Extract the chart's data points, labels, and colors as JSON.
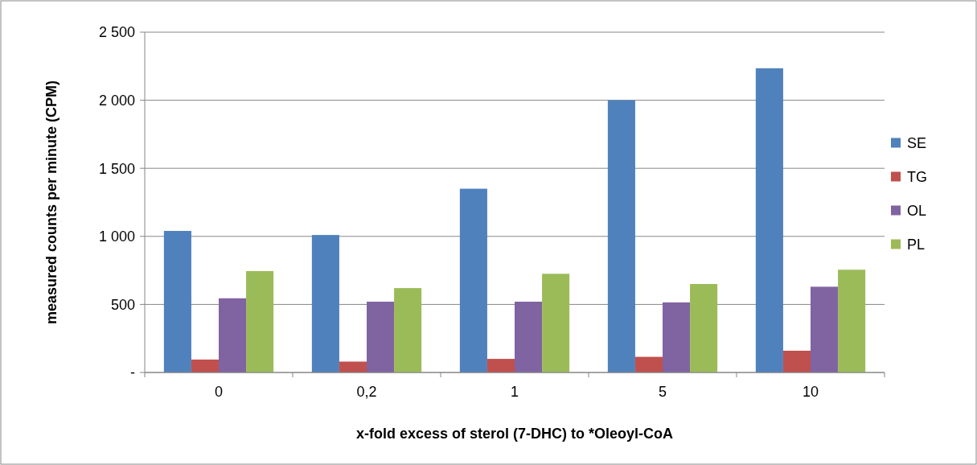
{
  "chart_data": {
    "type": "bar",
    "xlabel": "x-fold excess of sterol (7-DHC) to *Oleoyl-CoA",
    "ylabel": "measured counts per minute (CPM)",
    "categories": [
      "0",
      "0,2",
      "1",
      "5",
      "10"
    ],
    "series": [
      {
        "name": "SE",
        "color": "#4f81bd",
        "values": [
          1040,
          1010,
          1350,
          2000,
          2235
        ]
      },
      {
        "name": "TG",
        "color": "#c0504d",
        "values": [
          95,
          80,
          100,
          115,
          160
        ]
      },
      {
        "name": "OL",
        "color": "#8064a2",
        "values": [
          545,
          520,
          520,
          515,
          630
        ]
      },
      {
        "name": "PL",
        "color": "#9bbb59",
        "values": [
          745,
          620,
          725,
          650,
          755
        ]
      }
    ],
    "ylim": [
      0,
      2500
    ],
    "yticks": [
      {
        "value": 0,
        "label": "-"
      },
      {
        "value": 500,
        "label": "500"
      },
      {
        "value": 1000,
        "label": "1 000"
      },
      {
        "value": 1500,
        "label": "1 500"
      },
      {
        "value": 2000,
        "label": "2 000"
      },
      {
        "value": 2500,
        "label": "2 500"
      }
    ],
    "grid": "y",
    "legend": "right"
  }
}
